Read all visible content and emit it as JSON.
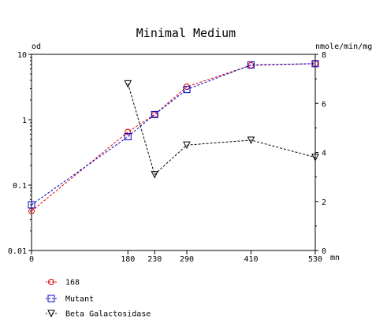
{
  "chart_data": {
    "type": "line",
    "title": "Minimal Medium",
    "ylabel_left": "od",
    "ylabel_right": "nmole/min/mg",
    "xunit": "mn",
    "x_ticks": [
      0,
      180,
      230,
      290,
      410,
      530
    ],
    "x_tick_labels": [
      "0",
      "180",
      "230",
      "290",
      "410",
      "530"
    ],
    "y_left_ticks": [
      0.01,
      0.1,
      1,
      10
    ],
    "y_left_tick_labels": [
      "0.01",
      "0.1",
      "1",
      "10"
    ],
    "y_left_scale": "log",
    "y_left_range": [
      0.01,
      10
    ],
    "y_right_ticks": [
      0,
      2,
      4,
      6,
      8
    ],
    "y_right_tick_labels": [
      "0",
      "2",
      "4",
      "6",
      "8"
    ],
    "y_right_range": [
      0,
      8
    ],
    "x_range": [
      0,
      530
    ],
    "grid": false,
    "legend_position": "bottom-left",
    "series": [
      {
        "name": "168",
        "axis": "left",
        "marker": "circle",
        "color": "#e00000",
        "x": [
          0,
          180,
          230,
          290,
          410,
          530
        ],
        "y": [
          0.04,
          0.65,
          1.2,
          3.2,
          6.8,
          7.2
        ]
      },
      {
        "name": "Mutant",
        "axis": "left",
        "marker": "square",
        "color": "#0000cc",
        "x": [
          0,
          180,
          230,
          290,
          410,
          530
        ],
        "y": [
          0.05,
          0.55,
          1.2,
          2.9,
          6.9,
          7.2
        ]
      },
      {
        "name": "Beta Galactosidase",
        "axis": "right",
        "marker": "triangle-down",
        "color": "#000000",
        "x": [
          180,
          230,
          290,
          410,
          530
        ],
        "y": [
          6.8,
          3.1,
          4.3,
          4.5,
          3.8
        ]
      }
    ]
  }
}
